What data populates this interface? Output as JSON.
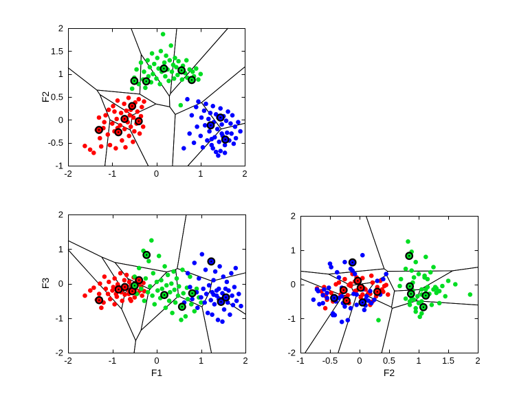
{
  "figure": {
    "background": "#ffffff",
    "axis_color": "#000000",
    "boundary_line_color": "#000000"
  },
  "palette": {
    "red": "#ff0000",
    "green": "#00dd22",
    "blue": "#0000ff",
    "prototype_ring": "#000000"
  },
  "chart_data": {
    "type": "scatter",
    "description": "three pairwise feature projections of clustered points with prototype markers and voronoi boundaries",
    "dims": [
      "F1",
      "F2",
      "F3"
    ],
    "grid": false,
    "legend": "none",
    "plots": [
      {
        "name": "f1-f2",
        "x_dim": 0,
        "y_dim": 1,
        "xlabel": "",
        "ylabel": "F2",
        "xlim": [
          -2,
          2
        ],
        "ylim": [
          -1,
          2
        ],
        "xticks": [
          -2,
          -1,
          0,
          1,
          2
        ],
        "yticks": [
          -1,
          -0.5,
          0,
          0.5,
          1,
          1.5,
          2
        ]
      },
      {
        "name": "f1-f3",
        "x_dim": 0,
        "y_dim": 2,
        "xlabel": "F1",
        "ylabel": "F3",
        "xlim": [
          -2,
          2
        ],
        "ylim": [
          -2,
          2
        ],
        "xticks": [
          -2,
          -1,
          0,
          1,
          2
        ],
        "yticks": [
          -2,
          -1,
          0,
          1,
          2
        ]
      },
      {
        "name": "f2-f3",
        "x_dim": 1,
        "y_dim": 2,
        "xlabel": "F2",
        "ylabel": "",
        "xlim": [
          -1,
          2
        ],
        "ylim": [
          -2,
          2
        ],
        "xticks": [
          -1,
          -0.5,
          0,
          0.5,
          1,
          1.5,
          2
        ],
        "yticks": [
          -2,
          -1,
          0,
          1,
          2
        ]
      }
    ],
    "classes": [
      {
        "name": "red-cluster",
        "color": "red",
        "points": [
          [
            -1.62,
            -0.57,
            -0.35
          ],
          [
            -1.5,
            -0.65,
            -0.2
          ],
          [
            -1.42,
            -0.72,
            -0.12
          ],
          [
            -1.35,
            -0.22,
            -0.47
          ],
          [
            -1.3,
            0.05,
            -0.3
          ],
          [
            -1.28,
            -0.4,
            0.0
          ],
          [
            -1.25,
            -0.58,
            -0.7
          ],
          [
            -1.2,
            -0.18,
            -0.55
          ],
          [
            -1.15,
            0.1,
            -0.15
          ],
          [
            -1.1,
            -0.32,
            -0.3
          ],
          [
            -1.08,
            0.22,
            0.05
          ],
          [
            -1.05,
            -0.55,
            -0.45
          ],
          [
            -1.0,
            -0.08,
            -0.2
          ],
          [
            -0.98,
            0.3,
            -0.1
          ],
          [
            -0.95,
            -0.25,
            0.15
          ],
          [
            -0.92,
            -0.62,
            -0.3
          ],
          [
            -0.9,
            0.02,
            -0.38
          ],
          [
            -0.88,
            0.42,
            -0.05
          ],
          [
            -0.85,
            -0.3,
            -0.15
          ],
          [
            -0.82,
            -0.12,
            0.3
          ],
          [
            -0.8,
            0.15,
            -0.25
          ],
          [
            -0.78,
            -0.45,
            -0.5
          ],
          [
            -0.75,
            0.02,
            -0.1
          ],
          [
            -0.73,
            0.35,
            0.1
          ],
          [
            -0.72,
            -0.2,
            -0.32
          ],
          [
            -0.7,
            -0.6,
            -0.08
          ],
          [
            -0.68,
            0.2,
            0.25
          ],
          [
            -0.65,
            -0.05,
            -0.18
          ],
          [
            -0.63,
            0.48,
            -0.3
          ],
          [
            -0.62,
            -0.35,
            0.05
          ],
          [
            -0.6,
            0.1,
            -0.45
          ],
          [
            -0.58,
            -0.15,
            -0.05
          ],
          [
            -0.55,
            0.3,
            -0.08
          ],
          [
            -0.53,
            -0.48,
            -0.25
          ],
          [
            -0.52,
            0.05,
            0.18
          ],
          [
            -0.5,
            -0.25,
            -0.4
          ],
          [
            -0.48,
            0.38,
            -0.15
          ],
          [
            -0.45,
            -0.08,
            0.08
          ],
          [
            -0.43,
            0.18,
            -0.28
          ],
          [
            -0.42,
            -0.03,
            0.1
          ],
          [
            -0.4,
            0.45,
            -0.02
          ],
          [
            -0.38,
            -0.3,
            -0.2
          ],
          [
            -0.35,
            0.08,
            -0.12
          ],
          [
            -0.33,
            0.28,
            -0.35
          ],
          [
            -0.3,
            -0.15,
            0.02
          ],
          [
            -0.28,
            0.4,
            -0.22
          ],
          [
            -0.95,
            0.18,
            -0.6
          ],
          [
            -1.18,
            -0.05,
            0.2
          ],
          [
            -0.88,
            -0.18,
            -0.02
          ],
          [
            -0.58,
            0.22,
            -0.5
          ]
        ],
        "prototypes": [
          [
            -1.3,
            -0.22,
            -0.48
          ],
          [
            -0.86,
            -0.27,
            -0.17
          ],
          [
            -0.72,
            0.02,
            -0.1
          ],
          [
            -0.55,
            0.3,
            -0.22
          ],
          [
            -0.4,
            -0.03,
            0.1
          ]
        ]
      },
      {
        "name": "green-cluster",
        "color": "green",
        "points": [
          [
            -0.55,
            0.68,
            -0.05
          ],
          [
            -0.5,
            0.92,
            0.2
          ],
          [
            -0.45,
            1.1,
            -0.3
          ],
          [
            -0.4,
            0.78,
            0.45
          ],
          [
            -0.35,
            1.25,
            -0.15
          ],
          [
            -0.3,
            0.88,
            0.95
          ],
          [
            -0.28,
            1.05,
            -0.5
          ],
          [
            -0.25,
            0.7,
            0.15
          ],
          [
            -0.2,
            1.3,
            -0.25
          ],
          [
            -0.18,
            0.95,
            0.65
          ],
          [
            -0.15,
            1.15,
            -0.08
          ],
          [
            -0.12,
            0.82,
            1.25
          ],
          [
            -0.1,
            1.45,
            -0.35
          ],
          [
            -0.08,
            1.0,
            0.3
          ],
          [
            -0.05,
            1.22,
            -0.6
          ],
          [
            0.0,
            0.9,
            0.05
          ],
          [
            0.02,
            1.35,
            -0.2
          ],
          [
            0.05,
            1.12,
            0.8
          ],
          [
            0.08,
            0.78,
            -0.42
          ],
          [
            0.1,
            1.5,
            0.1
          ],
          [
            0.12,
            1.05,
            -0.15
          ],
          [
            0.15,
            1.87,
            -0.3
          ],
          [
            0.18,
            1.25,
            0.5
          ],
          [
            0.2,
            0.95,
            -0.7
          ],
          [
            0.22,
            1.4,
            -0.05
          ],
          [
            0.25,
            1.1,
            0.25
          ],
          [
            0.28,
            0.85,
            -0.5
          ],
          [
            0.3,
            1.3,
            -0.25
          ],
          [
            0.33,
            1.62,
            0.0
          ],
          [
            0.35,
            1.05,
            -0.85
          ],
          [
            0.38,
            1.2,
            0.35
          ],
          [
            0.4,
            0.9,
            -0.18
          ],
          [
            0.42,
            1.35,
            -0.55
          ],
          [
            0.45,
            1.15,
            0.15
          ],
          [
            0.48,
            0.98,
            -0.35
          ],
          [
            0.5,
            1.28,
            -0.08
          ],
          [
            0.55,
            1.08,
            -0.65
          ],
          [
            0.58,
            0.88,
            0.4
          ],
          [
            0.6,
            1.18,
            -0.28
          ],
          [
            0.65,
            1.02,
            -0.95
          ],
          [
            0.68,
            1.3,
            -0.12
          ],
          [
            0.7,
            0.92,
            -0.45
          ],
          [
            0.75,
            1.1,
            0.2
          ],
          [
            0.78,
            0.85,
            -0.6
          ],
          [
            0.82,
            1.05,
            -0.3
          ],
          [
            0.85,
            0.95,
            -0.8
          ],
          [
            0.9,
            1.12,
            -0.15
          ],
          [
            0.95,
            0.88,
            -0.4
          ],
          [
            1.0,
            1.0,
            -0.55
          ],
          [
            0.55,
            0.32,
            -1.05
          ]
        ],
        "prototypes": [
          [
            -0.5,
            0.85,
            -0.06
          ],
          [
            -0.23,
            0.84,
            0.83
          ],
          [
            0.17,
            1.12,
            -0.33
          ],
          [
            0.57,
            1.08,
            -0.67
          ],
          [
            0.8,
            0.87,
            -0.28
          ]
        ]
      },
      {
        "name": "blue-cluster",
        "color": "blue",
        "points": [
          [
            0.62,
            -0.62,
            -0.55
          ],
          [
            0.7,
            0.45,
            0.3
          ],
          [
            0.75,
            -0.3,
            -0.1
          ],
          [
            0.8,
            0.1,
            -0.45
          ],
          [
            0.85,
            -0.5,
            0.6
          ],
          [
            0.9,
            0.28,
            -0.25
          ],
          [
            0.92,
            -0.15,
            -0.7
          ],
          [
            0.95,
            0.4,
            0.15
          ],
          [
            1.0,
            -0.35,
            -0.4
          ],
          [
            1.02,
            0.05,
            0.85
          ],
          [
            1.05,
            -0.6,
            -0.15
          ],
          [
            1.08,
            0.2,
            -0.55
          ],
          [
            1.1,
            -0.12,
            0.4
          ],
          [
            1.12,
            0.35,
            -0.3
          ],
          [
            1.15,
            -0.45,
            -0.85
          ],
          [
            1.18,
            0.02,
            -0.05
          ],
          [
            1.2,
            -0.25,
            0.65
          ],
          [
            1.22,
            0.15,
            -0.48
          ],
          [
            1.25,
            -0.55,
            -0.25
          ],
          [
            1.28,
            0.3,
            0.1
          ],
          [
            1.3,
            -0.05,
            -0.6
          ],
          [
            1.32,
            -0.38,
            0.35
          ],
          [
            1.35,
            0.12,
            -0.35
          ],
          [
            1.38,
            -0.2,
            -1.05
          ],
          [
            1.4,
            0.05,
            -0.15
          ],
          [
            1.42,
            -0.48,
            0.5
          ],
          [
            1.45,
            0.25,
            -0.45
          ],
          [
            1.48,
            -0.1,
            -0.28
          ],
          [
            1.5,
            -0.35,
            0.2
          ],
          [
            1.52,
            0.08,
            -0.75
          ],
          [
            1.55,
            -0.55,
            -0.4
          ],
          [
            1.58,
            -0.02,
            0.05
          ],
          [
            1.6,
            -0.28,
            -0.55
          ],
          [
            1.62,
            0.18,
            -0.2
          ],
          [
            1.65,
            -0.45,
            -0.9
          ],
          [
            1.68,
            -0.08,
            0.3
          ],
          [
            1.7,
            -0.3,
            -0.35
          ],
          [
            1.72,
            0.1,
            -0.62
          ],
          [
            1.75,
            -0.52,
            -0.1
          ],
          [
            1.78,
            -0.15,
            0.45
          ],
          [
            1.8,
            -0.4,
            -0.5
          ],
          [
            1.85,
            -0.05,
            -0.3
          ],
          [
            1.9,
            -0.25,
            -0.65
          ],
          [
            1.35,
            -0.7,
            -0.2
          ],
          [
            1.4,
            -0.78,
            -0.45
          ],
          [
            1.28,
            -0.62,
            -0.32
          ],
          [
            1.45,
            -0.68,
            -0.58
          ],
          [
            1.55,
            -0.72,
            -0.15
          ],
          [
            1.25,
            -0.42,
            -0.9
          ],
          [
            1.48,
            -0.3,
            -1.1
          ]
        ],
        "prototypes": [
          [
            1.23,
            -0.12,
            0.64
          ],
          [
            1.45,
            0.05,
            -0.53
          ],
          [
            1.56,
            -0.43,
            -0.4
          ]
        ]
      }
    ]
  }
}
